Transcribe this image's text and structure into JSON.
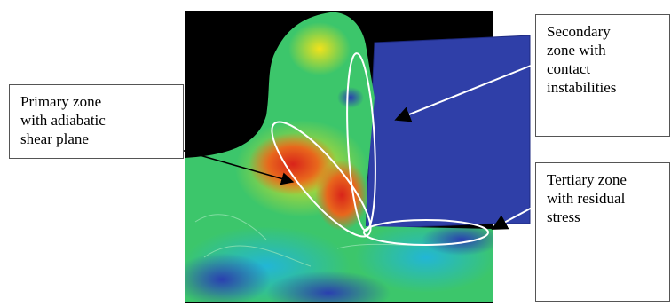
{
  "colors": {
    "background": "#000000",
    "tool": "#2f3fa8",
    "zone_outline": "#ffffff",
    "arrow": "#000000",
    "stress_low": "#2a3fb0",
    "stress_mid": "#3cc66b",
    "stress_high": "#d9241a"
  },
  "labels": {
    "primary": {
      "lines": [
        "Primary zone",
        "with adiabatic",
        "shear plane"
      ]
    },
    "secondary": {
      "lines": [
        "Secondary",
        "zone with",
        "contact",
        "instabilities"
      ]
    },
    "tertiary": {
      "lines": [
        "Tertiary zone",
        "with residual",
        "stress"
      ]
    }
  }
}
